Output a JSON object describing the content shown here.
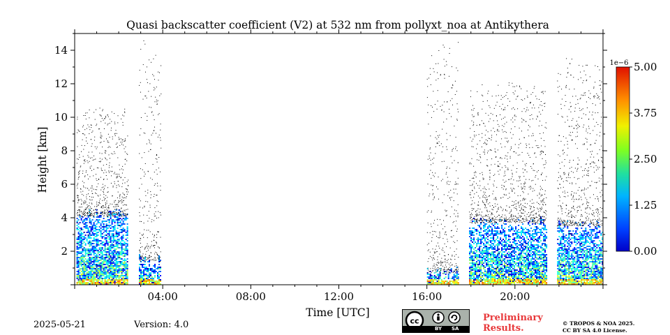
{
  "chart_data": {
    "type": "heatmap",
    "title": "Quasi backscatter coefficient (V2) at 532 nm from pollyxt_noa at Antikythera",
    "xlabel": "Time [UTC]",
    "ylabel": "Height [km]",
    "xlim": [
      "00:00",
      "24:00"
    ],
    "ylim": [
      0,
      15
    ],
    "x_ticks": [
      "04:00",
      "08:00",
      "12:00",
      "16:00",
      "20:00"
    ],
    "y_ticks": [
      "2",
      "4",
      "6",
      "8",
      "10",
      "12",
      "14"
    ],
    "colorbar": {
      "label": "1e−6",
      "min": 0.0,
      "max": 5.0,
      "ticks": [
        "0.00",
        "1.25",
        "2.50",
        "3.75",
        "5.00"
      ],
      "colormap": "jet"
    },
    "data_segments": [
      {
        "start": "00:05",
        "end": "02:25",
        "dense_top_km": 4.2,
        "sparse_top_km": 10.5
      },
      {
        "start": "02:55",
        "end": "03:55",
        "dense_top_km": 1.5,
        "sparse_top_km": 14.5
      },
      {
        "start": "16:00",
        "end": "17:25",
        "dense_top_km": 0.8,
        "sparse_top_km": 14.5
      },
      {
        "start": "17:55",
        "end": "21:25",
        "dense_top_km": 3.8,
        "sparse_top_km": 12.0
      },
      {
        "start": "21:55",
        "end": "24:00",
        "dense_top_km": 3.6,
        "sparse_top_km": 13.5
      }
    ]
  },
  "footer": {
    "date": "2025-05-21",
    "version": "Version: 4.0",
    "prelim_line1": "Preliminary",
    "prelim_line2": "Results.",
    "copyright_line1": "© TROPOS & NOA 2025.",
    "copyright_line2": "CC BY SA 4.0 License.",
    "license_by": "BY",
    "license_sa": "SA"
  }
}
